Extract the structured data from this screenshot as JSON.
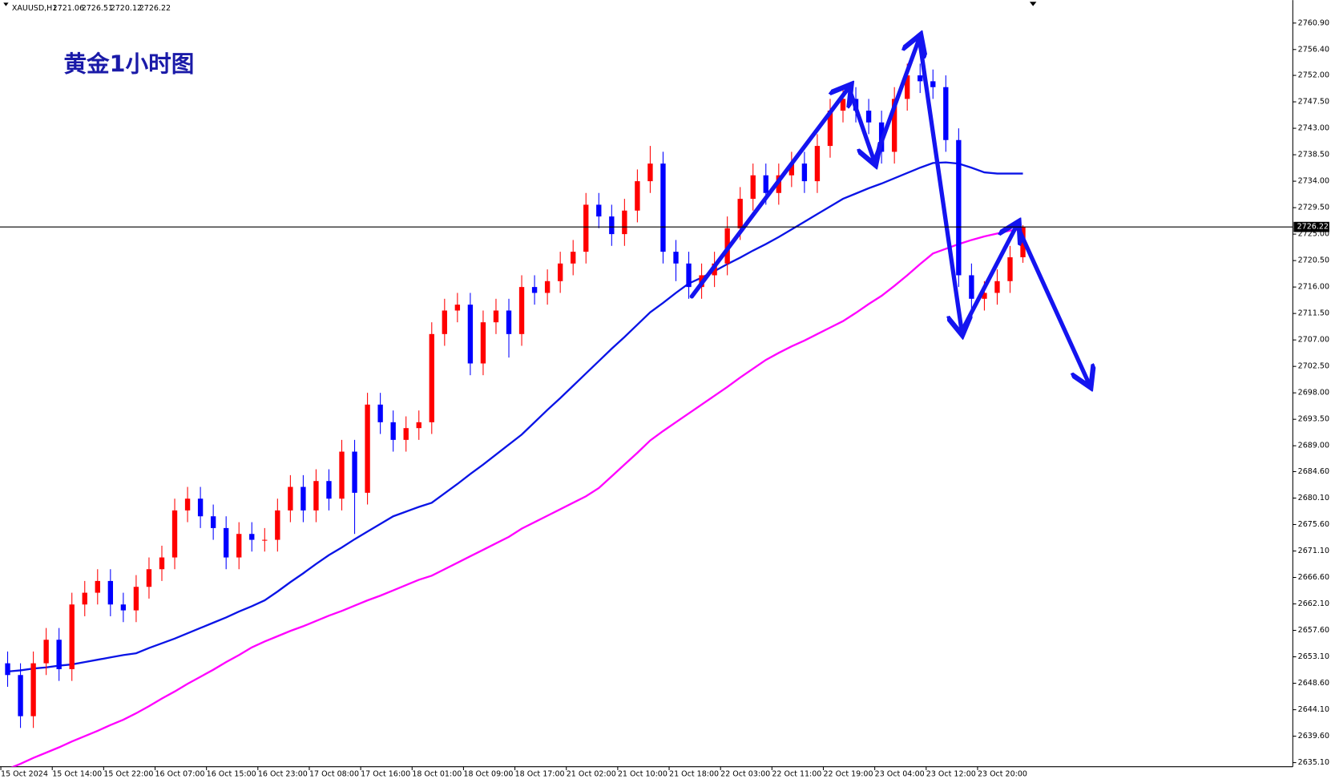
{
  "chart_data": {
    "type": "candlestick",
    "title": "黄金1小时图",
    "symbol": "XAUUSD,H1",
    "header_values": [
      2721.06,
      2726.51,
      2720.12,
      2726.22
    ],
    "last_price": 2726.22,
    "up_color": "#ff0000",
    "down_color": "#0000ff",
    "categories": [
      "15 Oct 2024",
      null,
      null,
      null,
      "15 Oct 14:00",
      null,
      null,
      null,
      "15 Oct 22:00",
      null,
      null,
      null,
      "16 Oct 07:00",
      null,
      null,
      null,
      "16 Oct 15:00",
      null,
      null,
      null,
      "16 Oct 23:00",
      null,
      null,
      null,
      "17 Oct 08:00",
      null,
      null,
      null,
      "17 Oct 16:00",
      null,
      null,
      null,
      "18 Oct 01:00",
      null,
      null,
      null,
      "18 Oct 09:00",
      null,
      null,
      null,
      "18 Oct 17:00",
      null,
      null,
      null,
      "21 Oct 02:00",
      null,
      null,
      null,
      "21 Oct 10:00",
      null,
      null,
      null,
      "21 Oct 18:00",
      null,
      null,
      null,
      "22 Oct 03:00",
      null,
      null,
      null,
      "22 Oct 11:00",
      null,
      null,
      null,
      "22 Oct 19:00",
      null,
      null,
      null,
      "23 Oct 04:00",
      null,
      null,
      null,
      "23 Oct 12:00",
      null,
      null,
      null,
      "23 Oct 20:00",
      null,
      null,
      null
    ],
    "open": [
      2652,
      2650,
      2643,
      2652,
      2656,
      2651,
      2662,
      2664,
      2666,
      2662,
      2661,
      2665,
      2668,
      2670,
      2678,
      2680,
      2677,
      2675,
      2670,
      2674,
      2673,
      2673,
      2678,
      2682,
      2678,
      2683,
      2680,
      2688,
      2681,
      2696,
      2693,
      2690,
      2692,
      2693,
      2708,
      2712,
      2713,
      2703,
      2710,
      2712,
      2708,
      2716,
      2715,
      2717,
      2720,
      2722,
      2730,
      2728,
      2725,
      2729,
      2734,
      2737,
      2722,
      2720,
      2716,
      2718,
      2720,
      2726,
      2731,
      2735,
      2732,
      2735,
      2737,
      2734,
      2740,
      2746,
      2748,
      2746,
      2744,
      2739,
      2748,
      2752,
      2751,
      2750,
      2741,
      2718,
      2714,
      2715,
      2717,
      2721.06
    ],
    "high": [
      2654,
      2652,
      2654,
      2658,
      2658,
      2664,
      2666,
      2668,
      2668,
      2664,
      2667,
      2670,
      2672,
      2680,
      2682,
      2682,
      2679,
      2677,
      2676,
      2676,
      2675,
      2680,
      2684,
      2684,
      2685,
      2685,
      2690,
      2690,
      2698,
      2698,
      2695,
      2694,
      2695,
      2710,
      2714,
      2715,
      2715,
      2712,
      2714,
      2714,
      2718,
      2718,
      2719,
      2722,
      2724,
      2732,
      2732,
      2730,
      2731,
      2736,
      2740,
      2739,
      2724,
      2722,
      2720,
      2722,
      2728,
      2733,
      2737,
      2737,
      2737,
      2739,
      2739,
      2742,
      2748,
      2750,
      2750,
      2748,
      2746,
      2750,
      2754,
      2754,
      2753,
      2752,
      2743,
      2720,
      2717,
      2719,
      2723,
      2726.51
    ],
    "low": [
      2648,
      2641,
      2641,
      2650,
      2649,
      2649,
      2660,
      2662,
      2660,
      2659,
      2659,
      2663,
      2666,
      2668,
      2676,
      2675,
      2673,
      2668,
      2668,
      2671,
      2671,
      2671,
      2676,
      2676,
      2676,
      2678,
      2678,
      2674,
      2679,
      2691,
      2688,
      2688,
      2690,
      2691,
      2706,
      2710,
      2701,
      2701,
      2708,
      2704,
      2706,
      2713,
      2713,
      2715,
      2718,
      2720,
      2726,
      2723,
      2723,
      2727,
      2732,
      2720,
      2717,
      2714,
      2714,
      2716,
      2718,
      2724,
      2729,
      2730,
      2730,
      2733,
      2732,
      2732,
      2738,
      2744,
      2744,
      2742,
      2737,
      2737,
      2746,
      2749,
      2748,
      2739,
      2716,
      2712,
      2712,
      2713,
      2715,
      2720.12
    ],
    "close": [
      2650,
      2643,
      2652,
      2656,
      2651,
      2662,
      2664,
      2666,
      2662,
      2661,
      2665,
      2668,
      2670,
      2678,
      2680,
      2677,
      2675,
      2670,
      2674,
      2673,
      2673,
      2678,
      2682,
      2678,
      2683,
      2680,
      2688,
      2681,
      2696,
      2693,
      2690,
      2692,
      2693,
      2708,
      2712,
      2713,
      2703,
      2710,
      2712,
      2708,
      2716,
      2715,
      2717,
      2720,
      2722,
      2730,
      2728,
      2725,
      2729,
      2734,
      2737,
      2722,
      2720,
      2716,
      2718,
      2720,
      2726,
      2731,
      2735,
      2732,
      2735,
      2737,
      2734,
      2740,
      2746,
      2748,
      2746,
      2744,
      2739,
      2748,
      2752,
      2751,
      2750,
      2741,
      2718,
      2714,
      2715,
      2717,
      2721.06,
      2726.22
    ],
    "lines": [
      {
        "color": "#0a14e6",
        "values": [
          2650.6,
          2650.8,
          2651.1,
          2651.3,
          2651.6,
          2651.8,
          2652.2,
          2652.6,
          2653.0,
          2653.4,
          2653.7,
          2654.6,
          2655.4,
          2656.2,
          2657.1,
          2658.0,
          2658.9,
          2659.8,
          2660.8,
          2661.7,
          2662.7,
          2664.2,
          2665.8,
          2667.3,
          2668.9,
          2670.4,
          2671.7,
          2673.1,
          2674.4,
          2675.7,
          2677.0,
          2677.8,
          2678.6,
          2679.3,
          2680.9,
          2682.5,
          2684.2,
          2685.8,
          2687.5,
          2689.2,
          2690.9,
          2693.0,
          2695.1,
          2697.1,
          2699.2,
          2701.3,
          2703.4,
          2705.5,
          2707.5,
          2709.6,
          2711.7,
          2713.3,
          2715.0,
          2716.6,
          2717.6,
          2718.7,
          2719.9,
          2721.0,
          2722.2,
          2723.3,
          2724.5,
          2725.8,
          2727.1,
          2728.4,
          2729.7,
          2731.0,
          2731.9,
          2732.8,
          2733.6,
          2734.5,
          2735.4,
          2736.3,
          2737.1,
          2737.2,
          2737.0,
          2736.3,
          2735.5,
          2735.3,
          2735.3,
          2735.3
        ]
      },
      {
        "color": "#ff00ff",
        "values": [
          2634.0,
          2634.9,
          2635.9,
          2636.8,
          2637.7,
          2638.7,
          2639.6,
          2640.5,
          2641.5,
          2642.4,
          2643.5,
          2644.7,
          2646.0,
          2647.2,
          2648.5,
          2649.7,
          2650.9,
          2652.2,
          2653.4,
          2654.7,
          2655.7,
          2656.6,
          2657.5,
          2658.3,
          2659.2,
          2660.1,
          2660.9,
          2661.8,
          2662.7,
          2663.5,
          2664.4,
          2665.3,
          2666.2,
          2666.9,
          2668.0,
          2669.1,
          2670.2,
          2671.3,
          2672.4,
          2673.5,
          2674.9,
          2676.0,
          2677.1,
          2678.2,
          2679.3,
          2680.4,
          2681.8,
          2683.8,
          2685.8,
          2687.8,
          2689.9,
          2691.5,
          2693.0,
          2694.5,
          2696.0,
          2697.5,
          2699.0,
          2700.6,
          2702.1,
          2703.6,
          2704.8,
          2705.9,
          2706.9,
          2708.0,
          2709.1,
          2710.2,
          2711.6,
          2713.1,
          2714.5,
          2716.2,
          2718.0,
          2719.9,
          2721.7,
          2722.5,
          2723.3,
          2724.0,
          2724.6,
          2725.1,
          2725.6,
          2725.8
        ]
      }
    ],
    "ylim": [
      2634.4,
      2764.8
    ],
    "yticks": [
      {
        "value": 2760.9,
        "label": "2760.90"
      },
      {
        "value": 2756.4,
        "label": "2756.40"
      },
      {
        "value": 2752.0,
        "label": "2752.00"
      },
      {
        "value": 2747.5,
        "label": "2747.50"
      },
      {
        "value": 2743.0,
        "label": "2743.00"
      },
      {
        "value": 2738.5,
        "label": "2738.50"
      },
      {
        "value": 2734.0,
        "label": "2734.00"
      },
      {
        "value": 2729.5,
        "label": "2729.50"
      },
      {
        "value": 2725.0,
        "label": "2725.00"
      },
      {
        "value": 2720.5,
        "label": "2720.50"
      },
      {
        "value": 2716.0,
        "label": "2716.00"
      },
      {
        "value": 2711.5,
        "label": "2711.50"
      },
      {
        "value": 2707.0,
        "label": "2707.00"
      },
      {
        "value": 2702.5,
        "label": "2702.50"
      },
      {
        "value": 2698.0,
        "label": "2698.00"
      },
      {
        "value": 2693.5,
        "label": "2693.50"
      },
      {
        "value": 2689.0,
        "label": "2689.00"
      },
      {
        "value": 2684.6,
        "label": "2684.60"
      },
      {
        "value": 2680.1,
        "label": "2680.10"
      },
      {
        "value": 2675.6,
        "label": "2675.60"
      },
      {
        "value": 2671.1,
        "label": "2671.10"
      },
      {
        "value": 2666.6,
        "label": "2666.60"
      },
      {
        "value": 2662.1,
        "label": "2662.10"
      },
      {
        "value": 2657.6,
        "label": "2657.60"
      },
      {
        "value": 2653.1,
        "label": "2653.10"
      },
      {
        "value": 2648.6,
        "label": "2648.60"
      },
      {
        "value": 2644.1,
        "label": "2644.10"
      },
      {
        "value": 2639.6,
        "label": "2639.60"
      },
      {
        "value": 2635.1,
        "label": "2635.10"
      }
    ]
  }
}
